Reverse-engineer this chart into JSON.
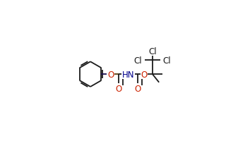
{
  "bg_color": "#ffffff",
  "line_color": "#1a1a1a",
  "O_color": "#cc2200",
  "N_color": "#00008b",
  "line_width": 1.3,
  "dbo": 0.006,
  "figsize": [
    3.54,
    2.01
  ],
  "dpi": 100,
  "xlim": [
    0.0,
    1.0
  ],
  "ylim": [
    0.0,
    1.0
  ]
}
